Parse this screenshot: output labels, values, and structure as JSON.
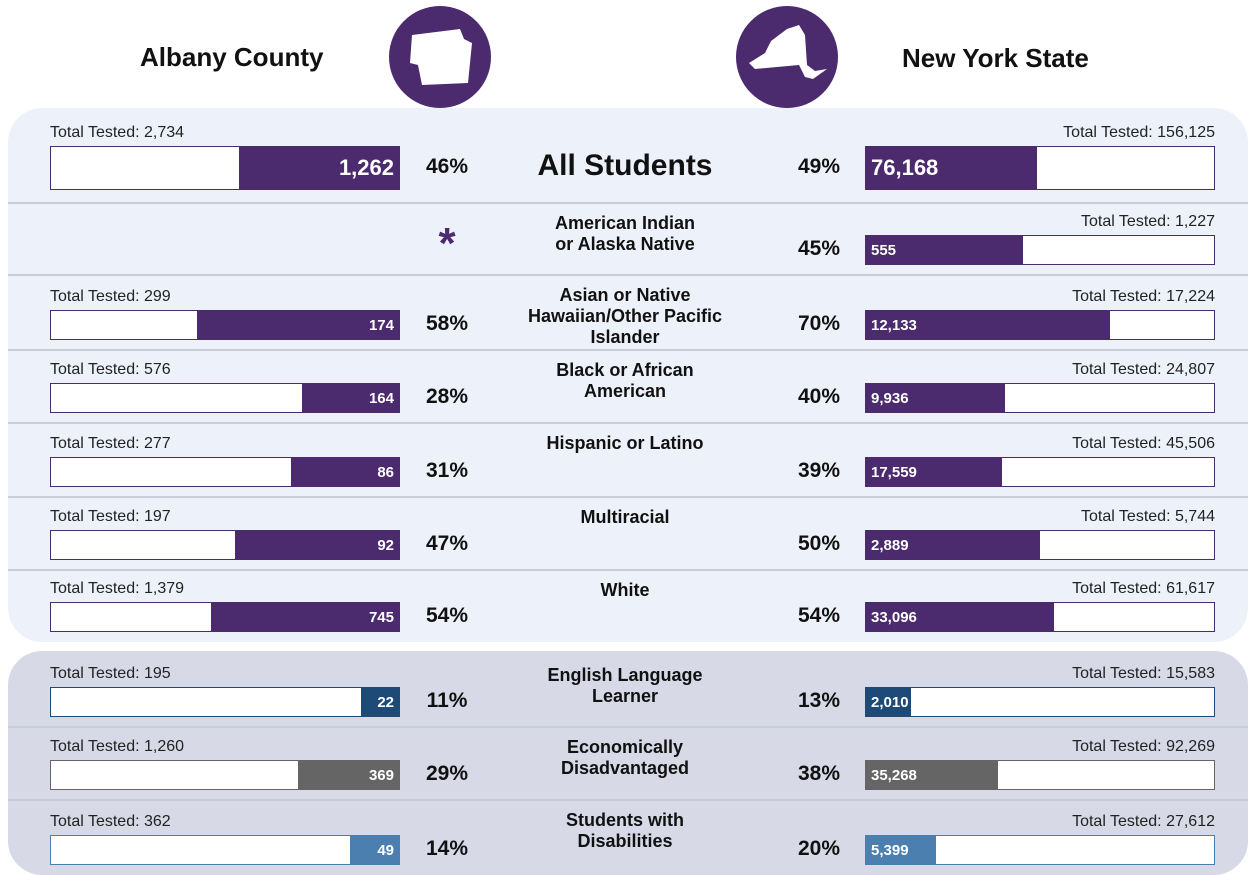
{
  "header": {
    "left": "Albany County",
    "right": "New York State"
  },
  "groups": [
    {
      "background": "#edf2fa",
      "rows": [
        {
          "label": "All Students",
          "color": "#4b2a6d",
          "county": {
            "total": "Total Tested: 2,734",
            "count": "1,262",
            "percent": 46,
            "percent_label": "46%"
          },
          "state": {
            "total": "Total Tested: 156,125",
            "count": "76,168",
            "percent": 49,
            "percent_label": "49%"
          }
        },
        {
          "label": "American Indian\nor Alaska Native",
          "color": "#4b2a6d",
          "county": {
            "note": "*"
          },
          "state": {
            "total": "Total Tested: 1,227",
            "count": "555",
            "percent": 45,
            "percent_label": "45%"
          }
        },
        {
          "label": "Asian or Native\nHawaiian/Other Pacific\nIslander",
          "color": "#4b2a6d",
          "county": {
            "total": "Total Tested: 299",
            "count": "174",
            "percent": 58,
            "percent_label": "58%"
          },
          "state": {
            "total": "Total Tested: 17,224",
            "count": "12,133",
            "percent": 70,
            "percent_label": "70%"
          }
        },
        {
          "label": "Black or African\nAmerican",
          "color": "#4b2a6d",
          "county": {
            "total": "Total Tested: 576",
            "count": "164",
            "percent": 28,
            "percent_label": "28%"
          },
          "state": {
            "total": "Total Tested: 24,807",
            "count": "9,936",
            "percent": 40,
            "percent_label": "40%"
          }
        },
        {
          "label": "Hispanic or Latino",
          "color": "#4b2a6d",
          "county": {
            "total": "Total Tested: 277",
            "count": "86",
            "percent": 31,
            "percent_label": "31%"
          },
          "state": {
            "total": "Total Tested: 45,506",
            "count": "17,559",
            "percent": 39,
            "percent_label": "39%"
          }
        },
        {
          "label": "Multiracial",
          "color": "#4b2a6d",
          "county": {
            "total": "Total Tested: 197",
            "count": "92",
            "percent": 47,
            "percent_label": "47%"
          },
          "state": {
            "total": "Total Tested: 5,744",
            "count": "2,889",
            "percent": 50,
            "percent_label": "50%"
          }
        },
        {
          "label": "White",
          "color": "#4b2a6d",
          "county": {
            "total": "Total Tested: 1,379",
            "count": "745",
            "percent": 54,
            "percent_label": "54%"
          },
          "state": {
            "total": "Total Tested: 61,617",
            "count": "33,096",
            "percent": 54,
            "percent_label": "54%"
          }
        }
      ]
    },
    {
      "background": "#d7d9e7",
      "rows": [
        {
          "label": "English Language\nLearner",
          "color": "#1e4a78",
          "county": {
            "total": "Total Tested: 195",
            "count": "22",
            "percent": 11,
            "percent_label": "11%"
          },
          "state": {
            "total": "Total Tested: 15,583",
            "count": "2,010",
            "percent": 13,
            "percent_label": "13%"
          }
        },
        {
          "label": "Economically\nDisadvantaged",
          "color": "#656565",
          "county": {
            "total": "Total Tested: 1,260",
            "count": "369",
            "percent": 29,
            "percent_label": "29%"
          },
          "state": {
            "total": "Total Tested: 92,269",
            "count": "35,268",
            "percent": 38,
            "percent_label": "38%"
          }
        },
        {
          "label": "Students with\nDisabilities",
          "color": "#4a7fb0",
          "county": {
            "total": "Total Tested: 362",
            "count": "49",
            "percent": 14,
            "percent_label": "14%"
          },
          "state": {
            "total": "Total Tested: 27,612",
            "count": "5,399",
            "percent": 20,
            "percent_label": "20%"
          }
        }
      ]
    }
  ]
}
